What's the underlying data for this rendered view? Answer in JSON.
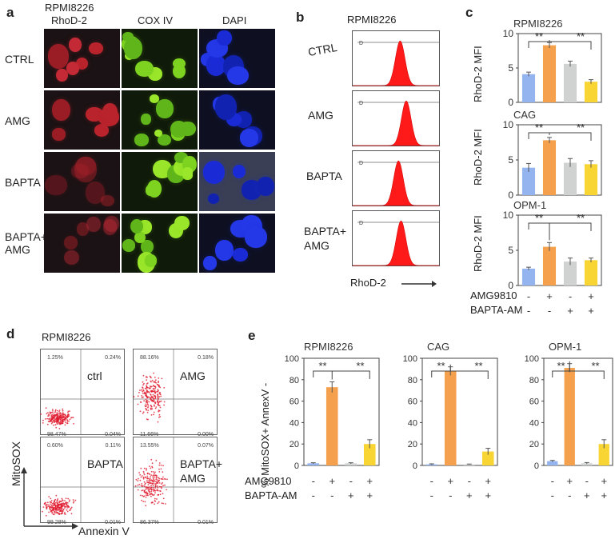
{
  "panel_a": {
    "label": "a",
    "cell_line": "RPMI8226",
    "columns": [
      "RhoD-2",
      "COX IV",
      "DAPI"
    ],
    "rows": [
      "CTRL",
      "AMG",
      "BAPTA",
      "BAPTA+\nAMG"
    ]
  },
  "panel_b": {
    "label": "b",
    "cell_line": "RPMI8226",
    "rows": [
      "CTRL",
      "AMG",
      "BAPTA",
      "BAPTA+\nAMG"
    ],
    "x_label": "RhoD-2"
  },
  "panel_c": {
    "label": "c",
    "y_label": "RhoD-2 MFI",
    "yticks": [
      "0",
      "5",
      "10"
    ],
    "sig": "**",
    "row_labels": [
      "AMG9810",
      "BAPTA-AM"
    ],
    "row_marks": [
      [
        "-",
        "+",
        "-",
        "+"
      ],
      [
        "-",
        "-",
        "+",
        "+"
      ]
    ]
  },
  "panel_d": {
    "label": "d",
    "cell_line": "RPMI8226",
    "y_label": "MitoSOX",
    "x_label": "Annexin V",
    "plots": [
      {
        "name": "ctrl",
        "q": [
          "1.25%",
          "0.24%",
          "98.47%",
          "0.04%"
        ]
      },
      {
        "name": "AMG",
        "q": [
          "88.16%",
          "0.18%",
          "11.66%",
          "0.00%"
        ]
      },
      {
        "name": "BAPTA",
        "q": [
          "0.60%",
          "0.11%",
          "99.28%",
          "0.01%"
        ]
      },
      {
        "name": "BAPTA+\nAMG",
        "q": [
          "13.55%",
          "0.07%",
          "86.37%",
          "0.01%"
        ]
      }
    ]
  },
  "panel_e": {
    "label": "e",
    "y_label": "% MitoSOX+ AnnexV -",
    "yticks": [
      "0",
      "20",
      "40",
      "60",
      "80",
      "100"
    ],
    "sig": "**",
    "row_labels": [
      "AMG9810",
      "BAPTA-AM"
    ],
    "row_marks": [
      [
        "-",
        "+",
        "-",
        "+"
      ],
      [
        "-",
        "-",
        "+",
        "+"
      ]
    ]
  },
  "colors": {
    "ctrl": "#93b4ef",
    "amg": "#f5a04d",
    "bapta": "#cfd2d0",
    "both": "#f9d534",
    "hist": "#ff1a1a"
  },
  "chart_data": [
    {
      "type": "bar",
      "title": "RPMI8226",
      "ylabel": "RhoD-2 MFI",
      "ylim": [
        0,
        10
      ],
      "categories": [
        "CTRL",
        "AMG",
        "BAPTA",
        "BAPTA+AMG"
      ],
      "values": [
        4.1,
        8.3,
        5.6,
        3.0
      ],
      "errors": [
        0.3,
        0.4,
        0.4,
        0.3
      ]
    },
    {
      "type": "bar",
      "title": "CAG",
      "ylabel": "RhoD-2 MFI",
      "ylim": [
        0,
        10
      ],
      "categories": [
        "CTRL",
        "AMG",
        "BAPTA",
        "BAPTA+AMG"
      ],
      "values": [
        3.9,
        7.8,
        4.6,
        4.4
      ],
      "errors": [
        0.6,
        0.4,
        0.6,
        0.5
      ]
    },
    {
      "type": "bar",
      "title": "OPM-1",
      "ylabel": "RhoD-2 MFI",
      "ylim": [
        0,
        10
      ],
      "categories": [
        "CTRL",
        "AMG",
        "BAPTA",
        "BAPTA+AMG"
      ],
      "values": [
        2.4,
        5.5,
        3.4,
        3.6
      ],
      "errors": [
        0.2,
        0.6,
        0.5,
        0.3
      ]
    },
    {
      "type": "bar",
      "title": "RPMI8226",
      "ylabel": "% MitoSOX+ AnnexV -",
      "ylim": [
        0,
        100
      ],
      "categories": [
        "CTRL",
        "AMG",
        "BAPTA",
        "BAPTA+AMG"
      ],
      "values": [
        2,
        73,
        2,
        20
      ],
      "errors": [
        0.5,
        5,
        0.5,
        4
      ]
    },
    {
      "type": "bar",
      "title": "CAG",
      "ylabel": "% MitoSOX+ AnnexV -",
      "ylim": [
        0,
        100
      ],
      "categories": [
        "CTRL",
        "AMG",
        "BAPTA",
        "BAPTA+AMG"
      ],
      "values": [
        1,
        88,
        1,
        13
      ],
      "errors": [
        0.5,
        4,
        0.3,
        3
      ]
    },
    {
      "type": "bar",
      "title": "OPM-1",
      "ylabel": "% MitoSOX+ AnnexV -",
      "ylim": [
        0,
        100
      ],
      "categories": [
        "CTRL",
        "AMG",
        "BAPTA",
        "BAPTA+AMG"
      ],
      "values": [
        4,
        91,
        2,
        20
      ],
      "errors": [
        0.7,
        4,
        0.7,
        4
      ]
    }
  ]
}
